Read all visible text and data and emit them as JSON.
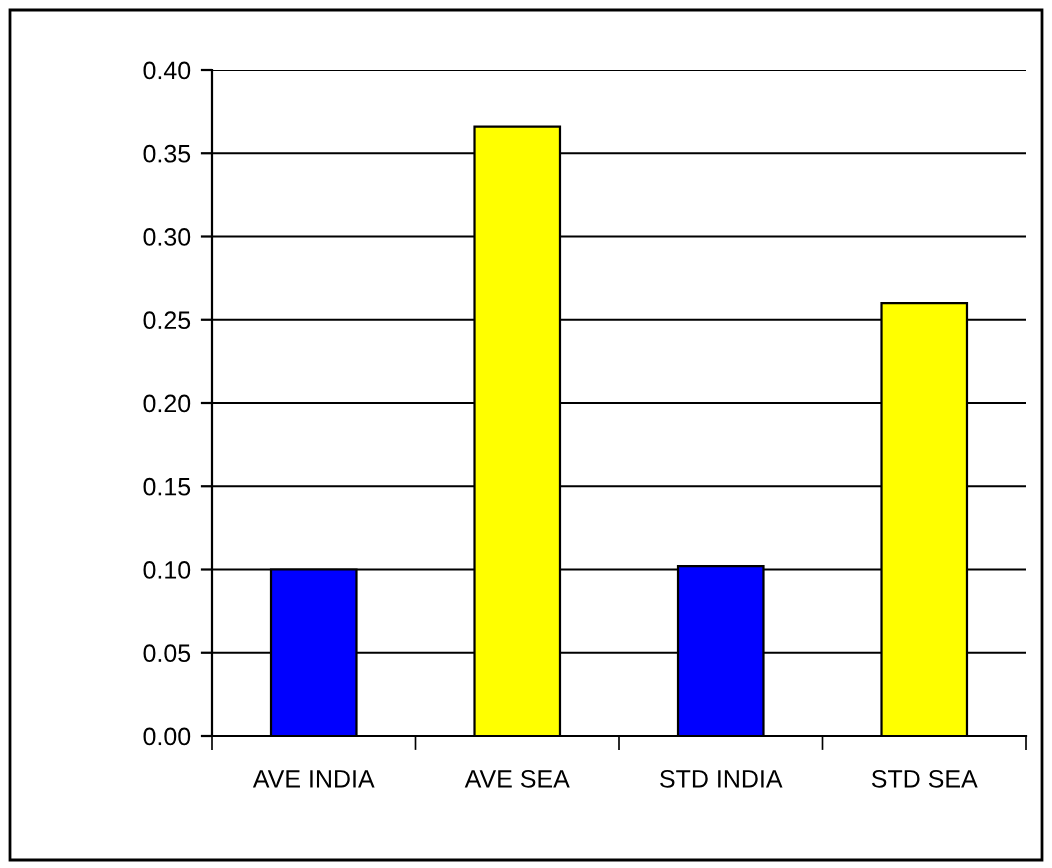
{
  "chart_data": {
    "type": "bar",
    "categories": [
      "AVE INDIA",
      "AVE SEA",
      "STD INDIA",
      "STD SEA"
    ],
    "values": [
      0.1,
      0.366,
      0.102,
      0.26
    ],
    "colors": [
      "#0000ff",
      "#ffff00",
      "#0000ff",
      "#ffff00"
    ],
    "ylim": [
      0,
      0.4
    ],
    "yticks": [
      {
        "value": 0,
        "label": "0.00"
      },
      {
        "value": 0.05,
        "label": "0.05"
      },
      {
        "value": 0.1,
        "label": "0.10"
      },
      {
        "value": 0.15,
        "label": "0.15"
      },
      {
        "value": 0.2,
        "label": "0.20"
      },
      {
        "value": 0.25,
        "label": "0.25"
      },
      {
        "value": 0.3,
        "label": "0.30"
      },
      {
        "value": 0.35,
        "label": "0.35"
      },
      {
        "value": 0.4,
        "label": "0.40"
      }
    ],
    "grid": "y"
  }
}
